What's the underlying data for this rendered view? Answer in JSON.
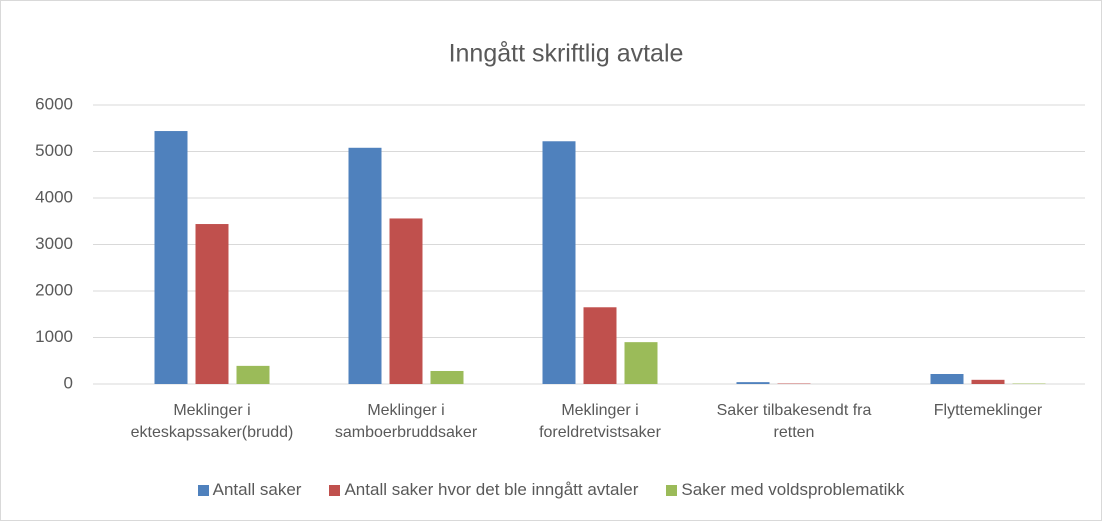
{
  "chart_data": {
    "type": "bar",
    "title": "Inngått skriftlig avtale",
    "categories": [
      "Meklinger i ekteskapssaker(brudd)",
      "Meklinger i samboerbruddsaker",
      "Meklinger i foreldretvistsaker",
      "Saker tilbakesendt fra retten",
      "Flyttemeklinger"
    ],
    "series": [
      {
        "name": "Antall saker",
        "color": "#4f81bd",
        "values": [
          5440,
          5080,
          5220,
          40,
          215
        ]
      },
      {
        "name": "Antall saker hvor det ble inngått avtaler",
        "color": "#c0504d",
        "values": [
          3440,
          3560,
          1650,
          10,
          90
        ]
      },
      {
        "name": "Saker med voldsproblematikk",
        "color": "#9bbb59",
        "values": [
          390,
          280,
          900,
          0,
          10
        ]
      }
    ],
    "ylim": [
      0,
      6000
    ],
    "yticks": [
      0,
      1000,
      2000,
      3000,
      4000,
      5000,
      6000
    ],
    "grid": true,
    "legend": "bottom"
  }
}
